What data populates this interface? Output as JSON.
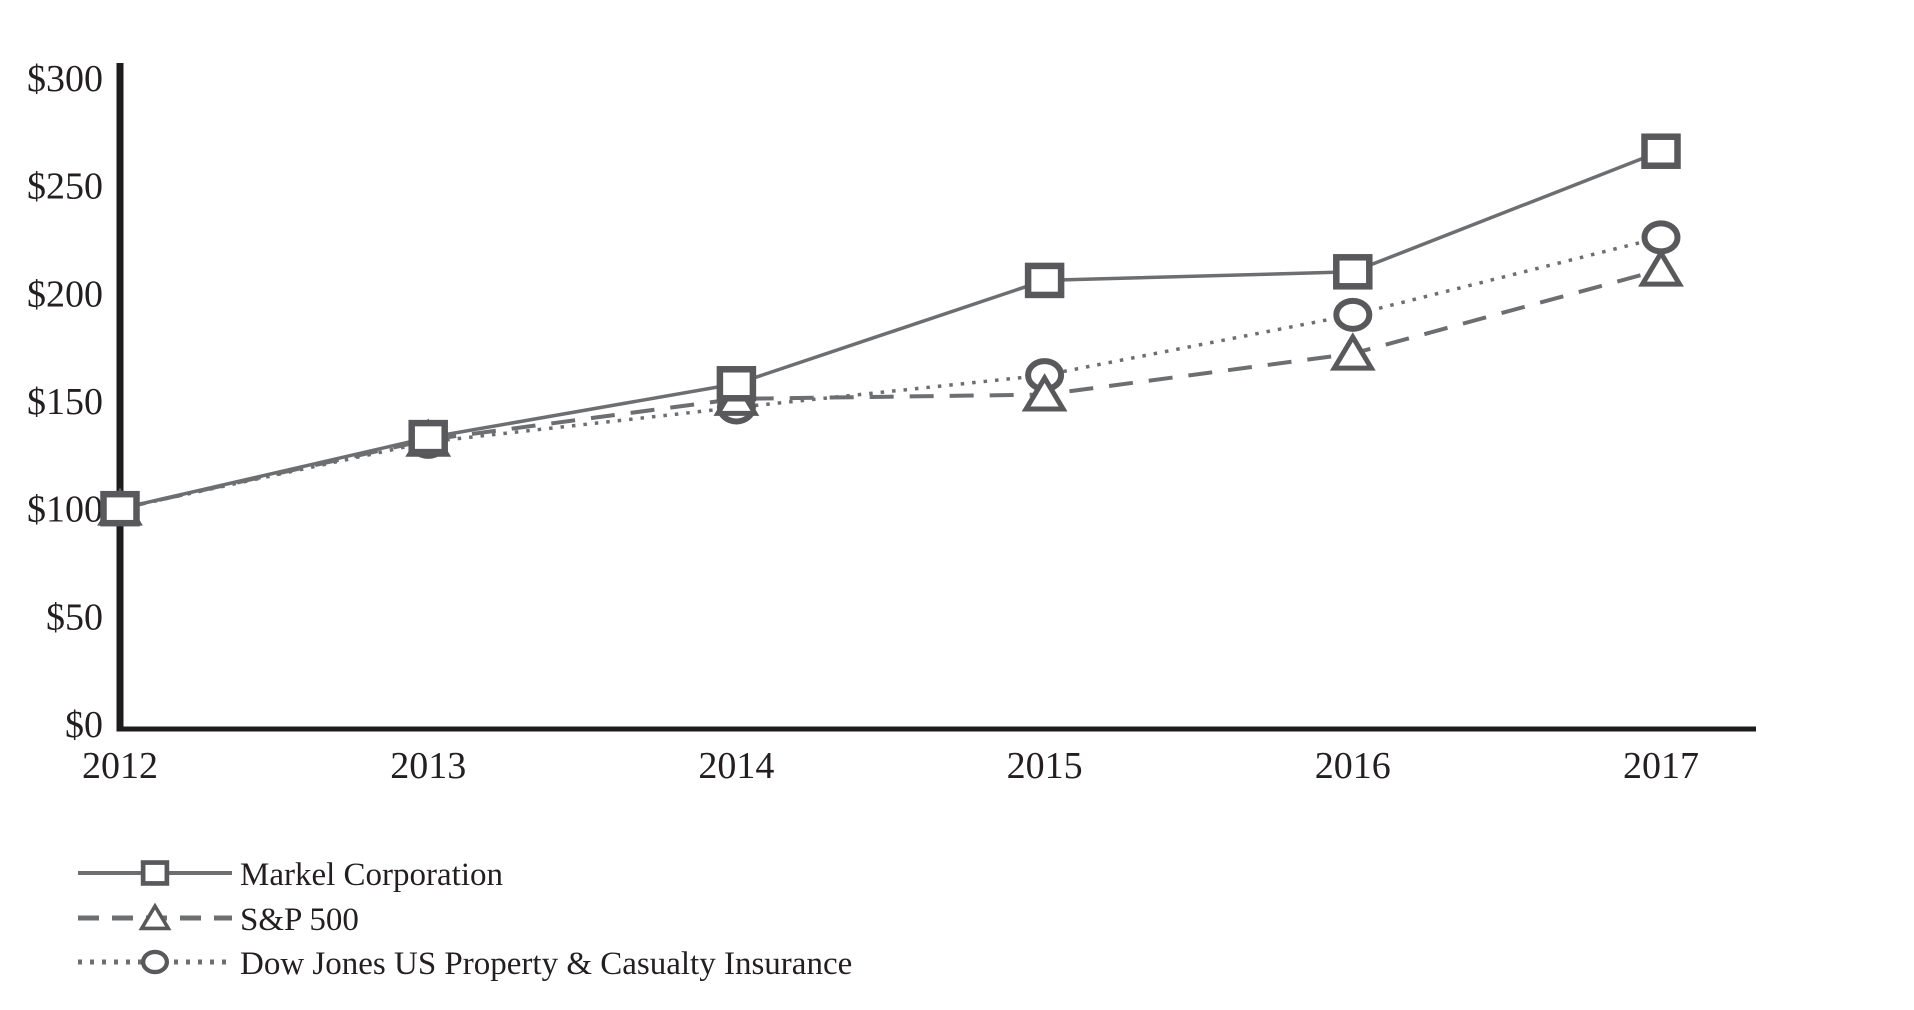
{
  "chart_data": {
    "type": "line",
    "title": "",
    "xlabel": "",
    "ylabel": "",
    "categories": [
      "2012",
      "2013",
      "2014",
      "2015",
      "2016",
      "2017"
    ],
    "series": [
      {
        "name": "Markel Corporation",
        "values": [
          100,
          133,
          158,
          206,
          210,
          266
        ],
        "line_style": "solid",
        "marker": "square"
      },
      {
        "name": "S&P 500",
        "values": [
          100,
          132,
          151,
          153,
          172,
          211
        ],
        "line_style": "dashed",
        "marker": "triangle"
      },
      {
        "name": "Dow Jones US Property & Casualty Insurance",
        "values": [
          100,
          131,
          147,
          162,
          190,
          226
        ],
        "line_style": "dotted",
        "marker": "circle"
      }
    ],
    "y_ticks": [
      {
        "value": 0,
        "label": "$0"
      },
      {
        "value": 50,
        "label": "$50"
      },
      {
        "value": 100,
        "label": "$100"
      },
      {
        "value": 150,
        "label": "$150"
      },
      {
        "value": 200,
        "label": "$200"
      },
      {
        "value": 250,
        "label": "$250"
      },
      {
        "value": 300,
        "label": "$300"
      }
    ],
    "ylim": [
      0,
      300
    ],
    "grid": false,
    "legend_position": "bottom-left",
    "colors": {
      "line": "#6d6e70",
      "marker": "#59595b",
      "axis": "#1d1b1c",
      "text": "#231f20",
      "background": "#ffffff"
    }
  }
}
